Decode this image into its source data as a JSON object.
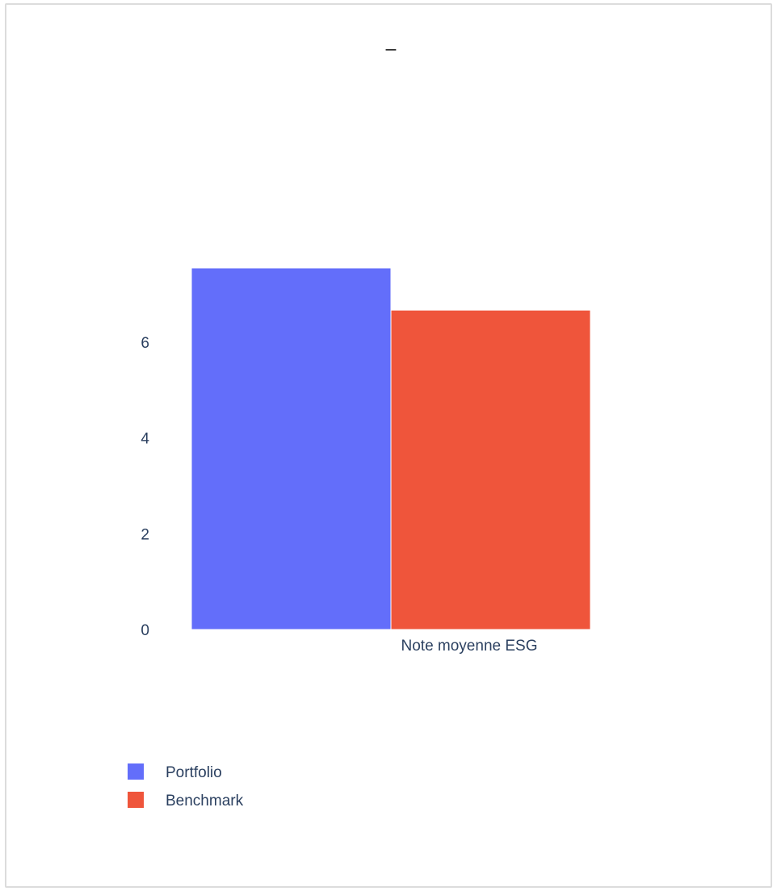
{
  "chart_data": {
    "type": "bar",
    "title": "_",
    "categories": [
      "Note moyenne ESG"
    ],
    "series": [
      {
        "name": "Portfolio",
        "values": [
          7.55
        ],
        "color": "#636efa"
      },
      {
        "name": "Benchmark",
        "values": [
          6.67
        ],
        "color": "#ef553b"
      }
    ],
    "xlabel": "",
    "ylabel": "",
    "ylim": [
      0,
      7.55
    ],
    "yticks": [
      0,
      2,
      4,
      6
    ],
    "grid": false,
    "legend_position": "bottom-left",
    "legend": [
      "Portfolio",
      "Benchmark"
    ]
  }
}
